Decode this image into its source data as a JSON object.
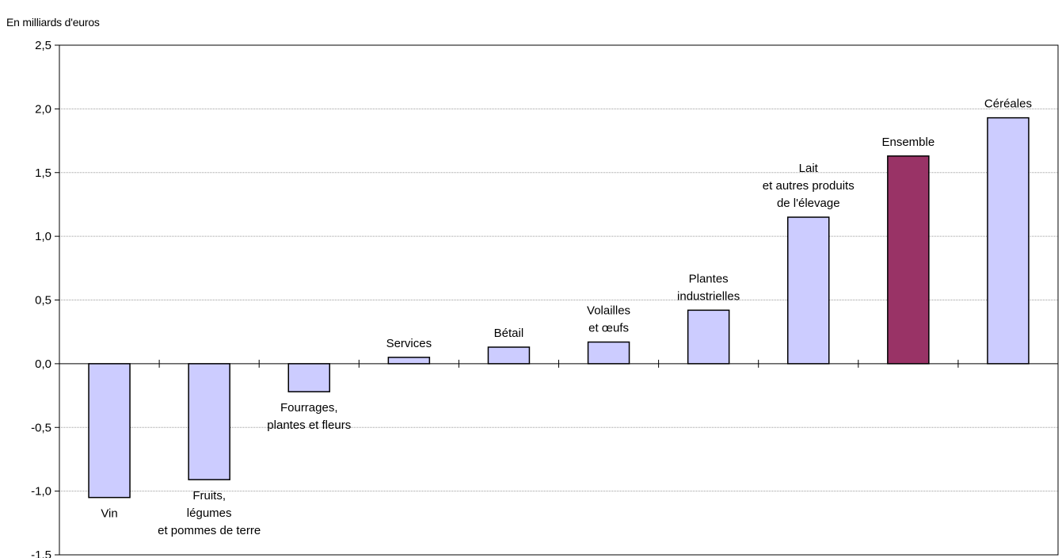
{
  "chart_data": {
    "type": "bar",
    "unit_label": "En milliards d'euros",
    "ylim": [
      -1.5,
      2.5
    ],
    "yticks": [
      "2,5",
      "2,0",
      "1,5",
      "1,0",
      "0,5",
      "0,0",
      "-0,5",
      "-1,0",
      "-1,5"
    ],
    "ytick_values": [
      2.5,
      2.0,
      1.5,
      1.0,
      0.5,
      0.0,
      -0.5,
      -1.0,
      -1.5
    ],
    "grid": true,
    "bar_color": "#ccccff",
    "highlight_color": "#993366",
    "categories": [
      {
        "label": [
          "Vin"
        ],
        "value": -1.05
      },
      {
        "label": [
          "Fruits,",
          "légumes",
          "et pommes de terre"
        ],
        "value": -0.91
      },
      {
        "label": [
          "Fourrages,",
          "plantes et fleurs"
        ],
        "value": -0.22
      },
      {
        "label": [
          "Services"
        ],
        "value": 0.05
      },
      {
        "label": [
          "Bétail"
        ],
        "value": 0.13
      },
      {
        "label": [
          "Volailles",
          "et œufs"
        ],
        "value": 0.17
      },
      {
        "label": [
          "Plantes",
          "industrielles"
        ],
        "value": 0.42
      },
      {
        "label": [
          "Lait",
          "et autres produits",
          "de l'élevage"
        ],
        "value": 1.15
      },
      {
        "label": [
          "Ensemble"
        ],
        "value": 1.63,
        "highlight": true
      },
      {
        "label": [
          "Céréales"
        ],
        "value": 1.93
      }
    ]
  }
}
